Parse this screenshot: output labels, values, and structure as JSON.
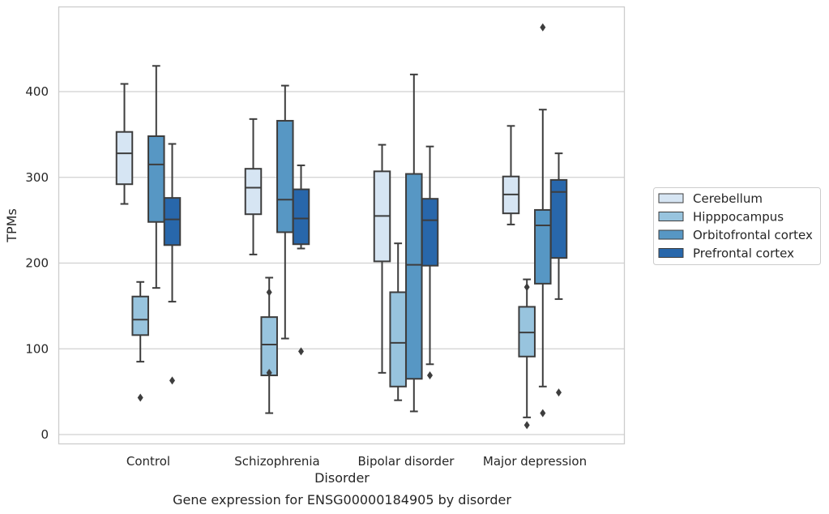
{
  "chart_data": {
    "type": "boxplot",
    "caption": "Gene expression for ENSG00000184905 by disorder",
    "xlabel": "Disorder",
    "ylabel": "TPMs",
    "ylim": [
      -10,
      500
    ],
    "yticks": [
      0,
      100,
      200,
      300,
      400
    ],
    "grid": "horizontal",
    "legend_position": "right",
    "categories": [
      "Control",
      "Schizophrenia",
      "Bipolar disorder",
      "Major depression"
    ],
    "series": [
      {
        "name": "Cerebellum",
        "color": "#d6e5f3",
        "boxes": [
          {
            "whisker_low": 269,
            "q1": 292,
            "median": 328,
            "q3": 353,
            "whisker_high": 409,
            "outliers": []
          },
          {
            "whisker_low": 210,
            "q1": 257,
            "median": 288,
            "q3": 310,
            "whisker_high": 368,
            "outliers": []
          },
          {
            "whisker_low": 72,
            "q1": 202,
            "median": 255,
            "q3": 307,
            "whisker_high": 338,
            "outliers": []
          },
          {
            "whisker_low": 245,
            "q1": 258,
            "median": 280,
            "q3": 301,
            "whisker_high": 360,
            "outliers": []
          }
        ]
      },
      {
        "name": "Hipppocampus",
        "color": "#98c4de",
        "boxes": [
          {
            "whisker_low": 85,
            "q1": 116,
            "median": 134,
            "q3": 161,
            "whisker_high": 178,
            "outliers": [
              43
            ]
          },
          {
            "whisker_low": 25,
            "q1": 69,
            "median": 105,
            "q3": 137,
            "whisker_high": 183,
            "outliers": [
              166,
              72
            ]
          },
          {
            "whisker_low": 40,
            "q1": 56,
            "median": 107,
            "q3": 166,
            "whisker_high": 223,
            "outliers": []
          },
          {
            "whisker_low": 20,
            "q1": 91,
            "median": 119,
            "q3": 149,
            "whisker_high": 181,
            "outliers": [
              172,
              11
            ]
          }
        ]
      },
      {
        "name": "Orbitofrontal cortex",
        "color": "#5797c4",
        "boxes": [
          {
            "whisker_low": 171,
            "q1": 248,
            "median": 315,
            "q3": 348,
            "whisker_high": 430,
            "outliers": []
          },
          {
            "whisker_low": 112,
            "q1": 236,
            "median": 274,
            "q3": 366,
            "whisker_high": 407,
            "outliers": []
          },
          {
            "whisker_low": 27,
            "q1": 65,
            "median": 198,
            "q3": 304,
            "whisker_high": 420,
            "outliers": []
          },
          {
            "whisker_low": 56,
            "q1": 176,
            "median": 244,
            "q3": 262,
            "whisker_high": 379,
            "outliers": [
              475,
              25
            ]
          }
        ]
      },
      {
        "name": "Prefrontal cortex",
        "color": "#2867ab",
        "boxes": [
          {
            "whisker_low": 155,
            "q1": 221,
            "median": 251,
            "q3": 276,
            "whisker_high": 339,
            "outliers": [
              63
            ]
          },
          {
            "whisker_low": 217,
            "q1": 222,
            "median": 252,
            "q3": 286,
            "whisker_high": 314,
            "outliers": [
              97
            ]
          },
          {
            "whisker_low": 82,
            "q1": 197,
            "median": 250,
            "q3": 275,
            "whisker_high": 336,
            "outliers": [
              69
            ]
          },
          {
            "whisker_low": 158,
            "q1": 206,
            "median": 283,
            "q3": 297,
            "whisker_high": 328,
            "outliers": [
              49
            ]
          }
        ]
      }
    ]
  }
}
